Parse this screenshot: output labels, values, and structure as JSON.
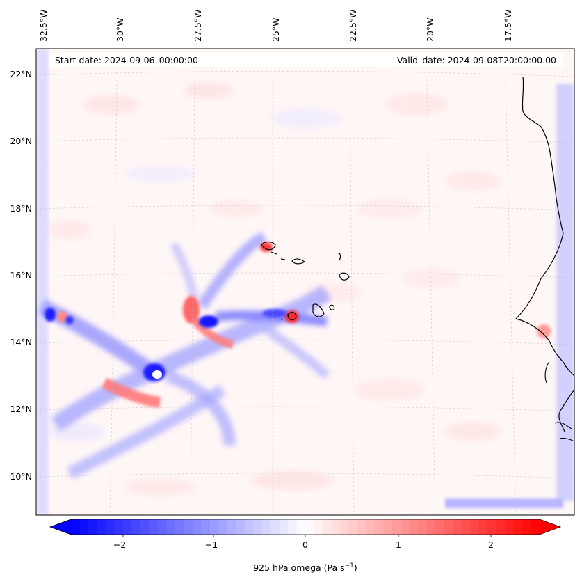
{
  "header": {
    "start_date": "Start date: 2024-09-06_00:00:00",
    "valid_date": "Valid_date: 2024-09-08T20:00:00.00"
  },
  "map": {
    "lon_labels": [
      "32.5°W",
      "30°W",
      "27.5°W",
      "25°W",
      "22.5°W",
      "20°W",
      "17.5°W"
    ],
    "lat_labels": [
      "22°N",
      "20°N",
      "18°N",
      "16°N",
      "14°N",
      "12°N",
      "10°N"
    ],
    "gridlines": true,
    "field": "925 hPa omega",
    "colors": {
      "negative": "#0000ff",
      "zero": "#ffffff",
      "positive": "#ff0000"
    }
  },
  "colorbar": {
    "ticks": [
      "−2",
      "−1",
      "0",
      "1",
      "2"
    ],
    "min": -2.7,
    "max": 2.7,
    "levels": 54,
    "extend": "both",
    "label_main": "925 hPa omega (Pa s",
    "label_sup": "−1",
    "label_close": ")"
  }
}
